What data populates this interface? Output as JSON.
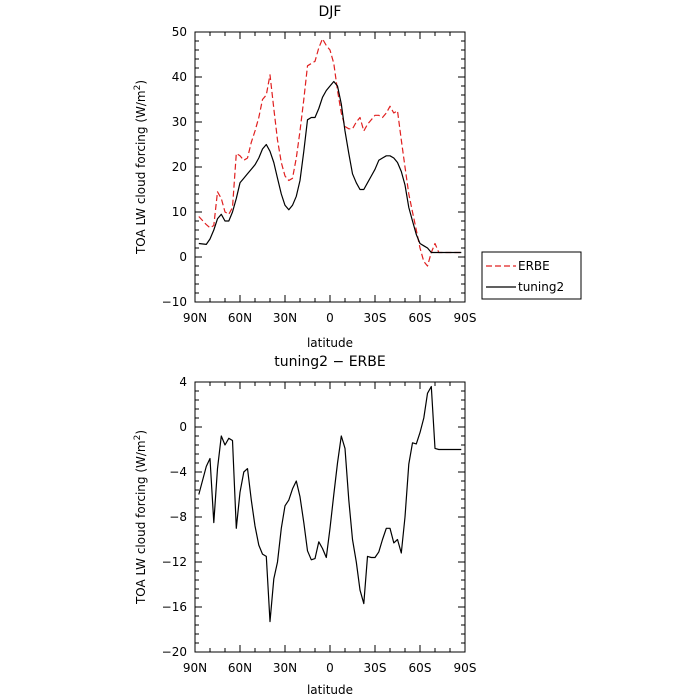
{
  "chart_data": [
    {
      "type": "line",
      "title": "DJF",
      "xlabel": "latitude",
      "ylabel_text": "TOA LW cloud forcing (W/m",
      "ylabel_sup": "2",
      "ylabel_close": ")",
      "xlim": [
        90,
        -90
      ],
      "ylim": [
        -10,
        50
      ],
      "xticks": [
        {
          "value": 90,
          "label": "90N"
        },
        {
          "value": 60,
          "label": "60N"
        },
        {
          "value": 30,
          "label": "30N"
        },
        {
          "value": 0,
          "label": "0"
        },
        {
          "value": -30,
          "label": "30S"
        },
        {
          "value": -60,
          "label": "60S"
        },
        {
          "value": -90,
          "label": "90S"
        }
      ],
      "yticks": [
        -10,
        0,
        10,
        20,
        30,
        40,
        50
      ],
      "legend_position": "right-bottom, outside plot",
      "series": [
        {
          "name": "ERBE",
          "color": "#e02020",
          "dash": "dashed",
          "x": [
            87.5,
            82.5,
            80,
            77.5,
            75,
            72.5,
            70,
            67.5,
            65,
            62.5,
            60,
            57.5,
            55,
            52.5,
            50,
            47.5,
            45,
            42.5,
            40,
            37.5,
            35,
            32.5,
            30,
            27.5,
            25,
            22.5,
            20,
            17.5,
            15,
            12.5,
            10,
            7.5,
            5,
            2.5,
            0,
            -2.5,
            -5,
            -7.5,
            -10,
            -12.5,
            -15,
            -17.5,
            -20,
            -22.5,
            -25,
            -27.5,
            -30,
            -32.5,
            -35,
            -37.5,
            -40,
            -42.5,
            -45,
            -47.5,
            -50,
            -52.5,
            -55,
            -57.5,
            -60,
            -62.5,
            -65,
            -67.5,
            -70,
            -72.5,
            -75,
            -77.5,
            -80,
            -82.5,
            -85,
            -87.5
          ],
          "values": [
            9,
            7.2,
            6.5,
            7,
            14.5,
            13,
            10,
            9.5,
            11,
            23,
            22.5,
            21.5,
            22,
            25.5,
            28,
            31,
            35,
            36,
            40.5,
            33,
            26,
            21,
            18,
            17,
            17.5,
            22,
            28,
            35,
            42.5,
            43,
            43.5,
            46.5,
            48.5,
            47,
            46,
            43,
            37,
            32,
            29,
            28.5,
            28.5,
            30,
            31,
            28,
            29.5,
            30.5,
            31.5,
            31.5,
            31,
            32,
            33.5,
            32,
            32.5,
            26,
            20,
            14,
            10,
            6,
            2,
            -1,
            -2,
            1,
            3,
            1,
            1,
            1,
            1,
            1,
            1,
            1
          ]
        },
        {
          "name": "tuning2",
          "color": "#000000",
          "dash": "solid",
          "x": [
            87.5,
            82.5,
            80,
            77.5,
            75,
            72.5,
            70,
            67.5,
            65,
            62.5,
            60,
            57.5,
            55,
            52.5,
            50,
            47.5,
            45,
            42.5,
            40,
            37.5,
            35,
            32.5,
            30,
            27.5,
            25,
            22.5,
            20,
            17.5,
            15,
            12.5,
            10,
            7.5,
            5,
            2.5,
            0,
            -2.5,
            -5,
            -7.5,
            -10,
            -12.5,
            -15,
            -17.5,
            -20,
            -22.5,
            -25,
            -27.5,
            -30,
            -32.5,
            -35,
            -37.5,
            -40,
            -42.5,
            -45,
            -47.5,
            -50,
            -52.5,
            -55,
            -57.5,
            -60,
            -62.5,
            -65,
            -67.5,
            -70,
            -72.5,
            -75,
            -77.5,
            -80,
            -82.5,
            -85,
            -87.5
          ],
          "values": [
            3,
            2.8,
            4,
            6,
            8.5,
            9.5,
            8,
            8,
            10,
            13,
            16.5,
            17.5,
            18.5,
            19.5,
            20.5,
            22,
            24,
            25,
            23.5,
            21,
            17.5,
            14,
            11.5,
            10.5,
            11.5,
            13.5,
            17,
            23.5,
            30.5,
            31,
            31,
            33,
            35.5,
            37,
            38,
            39,
            38,
            34,
            28,
            23,
            18.5,
            16.5,
            15,
            15,
            16.5,
            18,
            19.5,
            21.5,
            22,
            22.5,
            22.5,
            22,
            21,
            19,
            16,
            11,
            8,
            5,
            3,
            2.5,
            2,
            1,
            1,
            1,
            1,
            1,
            1,
            1,
            1,
            1
          ]
        }
      ]
    },
    {
      "type": "line",
      "title": "tuning2 − ERBE",
      "xlabel": "latitude",
      "ylabel_text": "TOA LW cloud forcing (W/m",
      "ylabel_sup": "2",
      "ylabel_close": ")",
      "xlim": [
        90,
        -90
      ],
      "ylim": [
        -20,
        4
      ],
      "xticks": [
        {
          "value": 90,
          "label": "90N"
        },
        {
          "value": 60,
          "label": "60N"
        },
        {
          "value": 30,
          "label": "30N"
        },
        {
          "value": 0,
          "label": "0"
        },
        {
          "value": -30,
          "label": "30S"
        },
        {
          "value": -60,
          "label": "60S"
        },
        {
          "value": -90,
          "label": "90S"
        }
      ],
      "yticks": [
        -20,
        -16,
        -12,
        -8,
        -4,
        0,
        4
      ],
      "series": [
        {
          "color": "#000000",
          "dash": "solid",
          "x": [
            87.5,
            82.5,
            80,
            77.5,
            75,
            72.5,
            70,
            67.5,
            65,
            62.5,
            60,
            57.5,
            55,
            52.5,
            50,
            47.5,
            45,
            42.5,
            40,
            37.5,
            35,
            32.5,
            30,
            27.5,
            25,
            22.5,
            20,
            17.5,
            15,
            12.5,
            10,
            7.5,
            5,
            2.5,
            0,
            -2.5,
            -5,
            -7.5,
            -10,
            -12.5,
            -15,
            -17.5,
            -20,
            -22.5,
            -25,
            -27.5,
            -30,
            -32.5,
            -35,
            -37.5,
            -40,
            -42.5,
            -45,
            -47.5,
            -50,
            -52.5,
            -55,
            -57.5,
            -60,
            -62.5,
            -65,
            -67.5,
            -70,
            -72.5,
            -75,
            -77.5,
            -80,
            -82.5,
            -85,
            -87.5
          ],
          "values": [
            -6,
            -3.5,
            -2.8,
            -8.5,
            -3.7,
            -0.8,
            -1.6,
            -1,
            -1.2,
            -9,
            -5.8,
            -4,
            -3.7,
            -6.5,
            -8.8,
            -10.5,
            -11.3,
            -11.5,
            -17.3,
            -13.5,
            -12,
            -9,
            -7,
            -6.5,
            -5.5,
            -4.8,
            -6.2,
            -8.5,
            -11,
            -11.8,
            -11.7,
            -10.2,
            -10.8,
            -11.6,
            -9,
            -6,
            -3.2,
            -0.8,
            -1.9,
            -6.5,
            -10,
            -12,
            -14.5,
            -15.7,
            -11.5,
            -11.6,
            -11.6,
            -11.1,
            -10,
            -9,
            -9,
            -10.3,
            -10,
            -11.2,
            -8,
            -3.3,
            -1.4,
            -1.5,
            -0.5,
            0.8,
            3,
            3.6,
            -1.9,
            -2,
            -2,
            -2,
            -2,
            -2,
            -2,
            -2
          ]
        }
      ]
    }
  ]
}
